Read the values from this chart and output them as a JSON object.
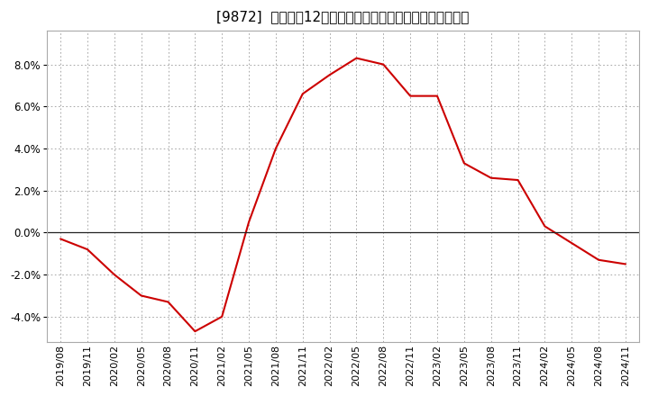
{
  "title": "[9872]  売上高の12か月移動合計の対前年同期増減率の推移",
  "line_color": "#cc0000",
  "background_color": "#ffffff",
  "plot_bg_color": "#ffffff",
  "grid_color": "#999999",
  "ylim": [
    -0.052,
    0.096
  ],
  "yticks": [
    -0.04,
    -0.02,
    0.0,
    0.02,
    0.04,
    0.06,
    0.08
  ],
  "x_labels": [
    "2019/08",
    "2019/11",
    "2020/02",
    "2020/05",
    "2020/08",
    "2020/11",
    "2021/02",
    "2021/05",
    "2021/08",
    "2021/11",
    "2022/02",
    "2022/05",
    "2022/08",
    "2022/11",
    "2023/02",
    "2023/05",
    "2023/08",
    "2023/11",
    "2024/02",
    "2024/05",
    "2024/08",
    "2024/11"
  ],
  "data": [
    -0.003,
    -0.008,
    -0.02,
    -0.03,
    -0.033,
    -0.047,
    -0.04,
    0.005,
    0.04,
    0.066,
    0.075,
    0.083,
    0.08,
    0.065,
    0.065,
    0.033,
    0.026,
    0.025,
    0.003,
    -0.005,
    -0.013,
    -0.015
  ],
  "title_fontsize": 11,
  "tick_fontsize": 8,
  "ytick_fontsize": 8.5
}
